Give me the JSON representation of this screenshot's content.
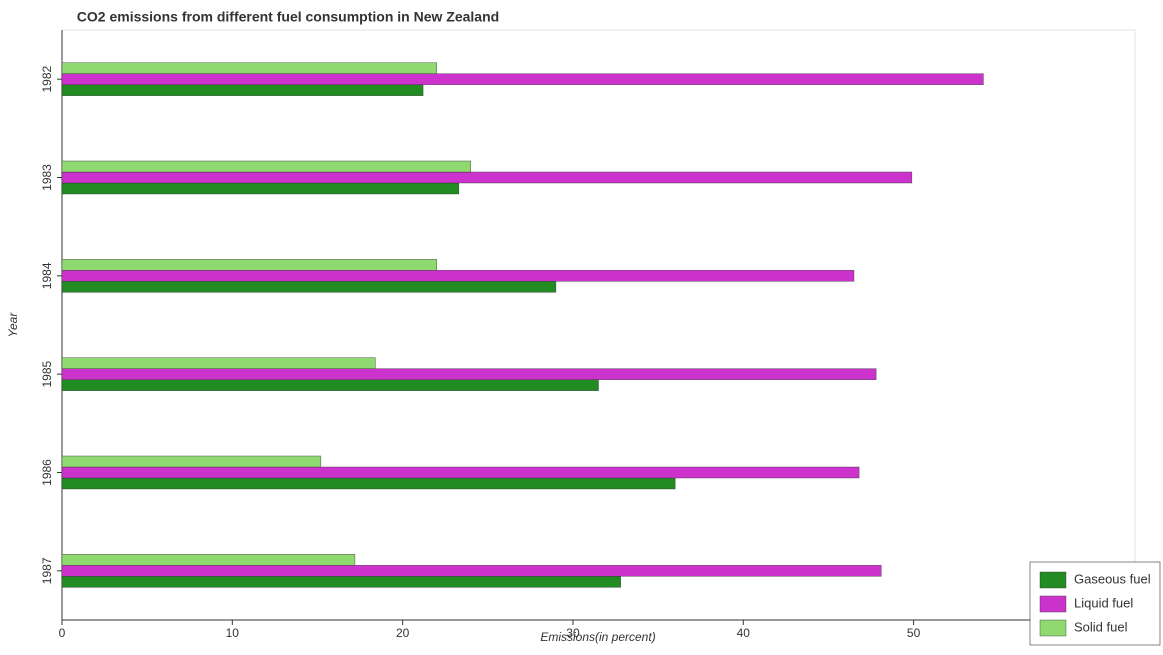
{
  "chart_data": {
    "type": "hbar",
    "title": "CO2 emissions from different fuel consumption in New Zealand",
    "x_label": "Emissions(in percent)",
    "y_label": "Year",
    "categories": [
      "1982",
      "1983",
      "1984",
      "1985",
      "1986",
      "1987"
    ],
    "series": [
      {
        "name": "Gaseous fuel",
        "color": "#228b22",
        "values": [
          21.2,
          23.3,
          29.0,
          31.5,
          36.0,
          32.8
        ]
      },
      {
        "name": "Liquid fuel",
        "color": "#cc33cc",
        "values": [
          54.1,
          49.9,
          46.5,
          47.8,
          46.8,
          48.1
        ]
      },
      {
        "name": "Solid fuel",
        "color": "#90d870",
        "values": [
          22.0,
          24.0,
          22.0,
          18.4,
          15.2,
          17.2
        ]
      }
    ],
    "xlim": [
      0,
      63
    ],
    "xticks": [
      0,
      10,
      20,
      30,
      40,
      50
    ],
    "legend": "lower right"
  }
}
